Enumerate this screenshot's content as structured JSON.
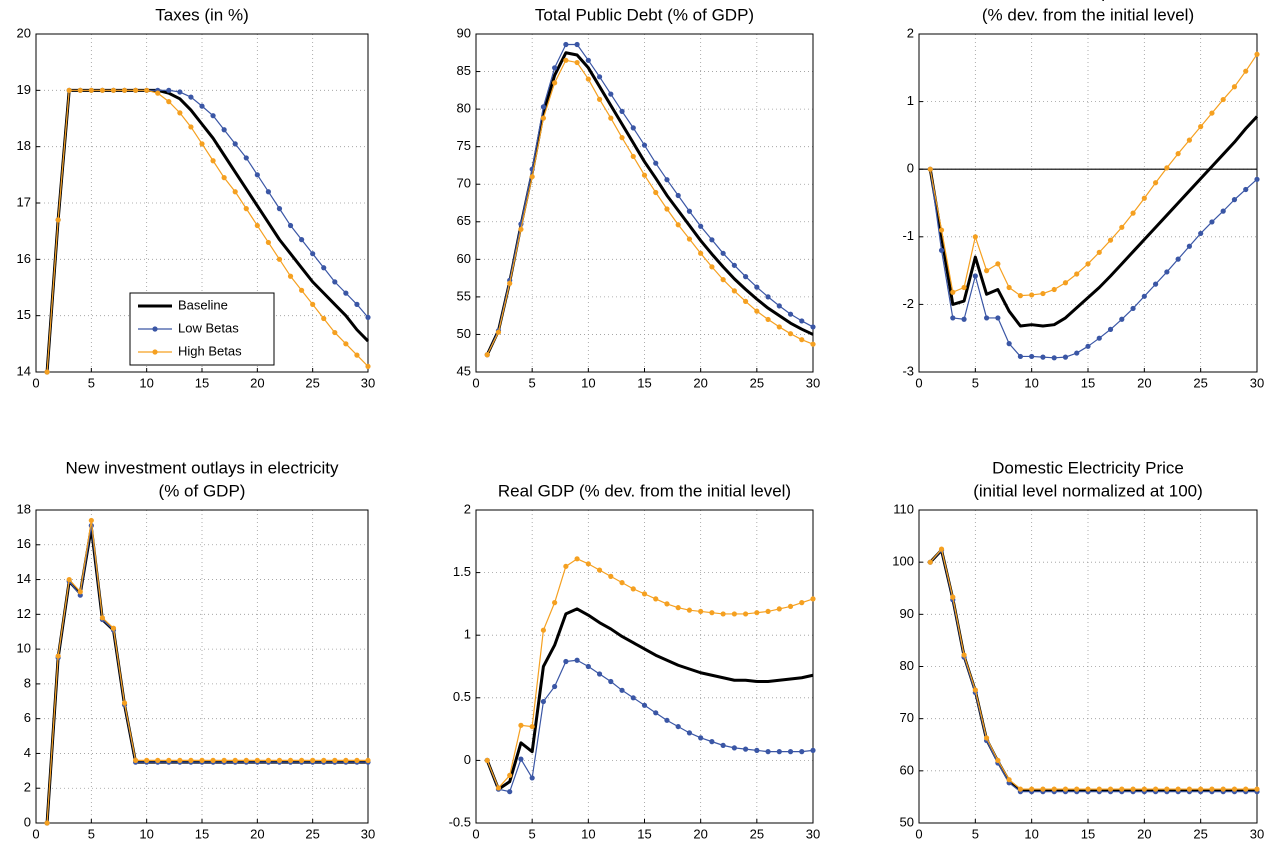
{
  "chart_data": [
    {
      "type": "line",
      "title": [
        "Taxes (in %)"
      ],
      "x": [
        1,
        2,
        3,
        4,
        5,
        6,
        7,
        8,
        9,
        10,
        11,
        12,
        13,
        14,
        15,
        16,
        17,
        18,
        19,
        20,
        21,
        22,
        23,
        24,
        25,
        26,
        27,
        28,
        29,
        30
      ],
      "xlim": [
        0,
        30
      ],
      "xticks": [
        0,
        5,
        10,
        15,
        20,
        25,
        30
      ],
      "ylim": [
        14,
        20
      ],
      "yticks": [
        14,
        15,
        16,
        17,
        18,
        19,
        20
      ],
      "grid": true,
      "legend": "lower center",
      "series": [
        {
          "name": "Baseline",
          "color": "#000000",
          "marker": false,
          "values": [
            14,
            16.7,
            19,
            19,
            19,
            19,
            19,
            19,
            19,
            19,
            19,
            18.95,
            18.85,
            18.65,
            18.4,
            18.15,
            17.85,
            17.55,
            17.25,
            16.95,
            16.65,
            16.35,
            16.1,
            15.85,
            15.6,
            15.4,
            15.2,
            15,
            14.75,
            14.55
          ]
        },
        {
          "name": "Low Betas",
          "color": "#3a56a5",
          "marker": true,
          "values": [
            14,
            16.7,
            19,
            19,
            19,
            19,
            19,
            19,
            19,
            19,
            19,
            19,
            18.97,
            18.88,
            18.72,
            18.55,
            18.3,
            18.05,
            17.8,
            17.5,
            17.2,
            16.9,
            16.6,
            16.35,
            16.1,
            15.85,
            15.6,
            15.4,
            15.2,
            14.97
          ]
        },
        {
          "name": "High Betas",
          "color": "#f5a020",
          "marker": true,
          "values": [
            14,
            16.7,
            19,
            19,
            19,
            19,
            19,
            19,
            19,
            19,
            18.95,
            18.8,
            18.6,
            18.35,
            18.05,
            17.75,
            17.45,
            17.2,
            16.9,
            16.6,
            16.3,
            16,
            15.7,
            15.45,
            15.2,
            14.95,
            14.7,
            14.5,
            14.3,
            14.1
          ]
        }
      ]
    },
    {
      "type": "line",
      "title": [
        "Total Public Debt (% of GDP)"
      ],
      "x": [
        1,
        2,
        3,
        4,
        5,
        6,
        7,
        8,
        9,
        10,
        11,
        12,
        13,
        14,
        15,
        16,
        17,
        18,
        19,
        20,
        21,
        22,
        23,
        24,
        25,
        26,
        27,
        28,
        29,
        30
      ],
      "xlim": [
        0,
        30
      ],
      "xticks": [
        0,
        5,
        10,
        15,
        20,
        25,
        30
      ],
      "ylim": [
        45,
        90
      ],
      "yticks": [
        45,
        50,
        55,
        60,
        65,
        70,
        75,
        80,
        85,
        90
      ],
      "grid": true,
      "series": [
        {
          "name": "Baseline",
          "color": "#000000",
          "marker": false,
          "values": [
            47.3,
            50.5,
            57,
            64.5,
            71.5,
            79.5,
            84.5,
            87.5,
            87.2,
            85.5,
            83,
            80.5,
            78,
            75.5,
            73,
            70.8,
            68.5,
            66.5,
            64.5,
            62.5,
            60.7,
            59,
            57.4,
            56,
            54.7,
            53.5,
            52.5,
            51.5,
            50.7,
            50
          ]
        },
        {
          "name": "Low Betas",
          "color": "#3a56a5",
          "marker": true,
          "values": [
            47.3,
            50.5,
            57.2,
            64.7,
            72,
            80.3,
            85.5,
            88.6,
            88.6,
            86.5,
            84.3,
            82,
            79.7,
            77.5,
            75.2,
            72.8,
            70.6,
            68.5,
            66.4,
            64.4,
            62.6,
            60.8,
            59.2,
            57.7,
            56.3,
            55,
            53.8,
            52.7,
            51.8,
            51
          ]
        },
        {
          "name": "High Betas",
          "color": "#f5a020",
          "marker": true,
          "values": [
            47.3,
            50.3,
            56.8,
            64,
            71,
            78.8,
            83.5,
            86.5,
            86.2,
            84,
            81.3,
            78.8,
            76.2,
            73.7,
            71.2,
            68.9,
            66.7,
            64.6,
            62.7,
            60.8,
            59,
            57.3,
            55.8,
            54.4,
            53.1,
            52,
            51,
            50.1,
            49.3,
            48.7
          ]
        }
      ]
    },
    {
      "type": "line",
      "title": [
        "Consumption",
        "(% dev. from the initial level)"
      ],
      "x": [
        1,
        2,
        3,
        4,
        5,
        6,
        7,
        8,
        9,
        10,
        11,
        12,
        13,
        14,
        15,
        16,
        17,
        18,
        19,
        20,
        21,
        22,
        23,
        24,
        25,
        26,
        27,
        28,
        29,
        30
      ],
      "xlim": [
        0,
        30
      ],
      "xticks": [
        0,
        5,
        10,
        15,
        20,
        25,
        30
      ],
      "ylim": [
        -3,
        2
      ],
      "yticks": [
        -3,
        -2,
        -1,
        0,
        1,
        2
      ],
      "grid": true,
      "hline": 0,
      "series": [
        {
          "name": "Baseline",
          "color": "#000000",
          "marker": false,
          "values": [
            0,
            -1,
            -2,
            -1.95,
            -1.3,
            -1.85,
            -1.78,
            -2.1,
            -2.32,
            -2.3,
            -2.32,
            -2.3,
            -2.2,
            -2.05,
            -1.9,
            -1.75,
            -1.58,
            -1.4,
            -1.22,
            -1.04,
            -0.86,
            -0.68,
            -0.5,
            -0.32,
            -0.14,
            0.04,
            0.22,
            0.4,
            0.6,
            0.78
          ]
        },
        {
          "name": "Low Betas",
          "color": "#3a56a5",
          "marker": true,
          "values": [
            0,
            -1.2,
            -2.2,
            -2.22,
            -1.58,
            -2.2,
            -2.2,
            -2.58,
            -2.77,
            -2.77,
            -2.78,
            -2.79,
            -2.78,
            -2.72,
            -2.62,
            -2.5,
            -2.37,
            -2.22,
            -2.06,
            -1.88,
            -1.7,
            -1.52,
            -1.33,
            -1.14,
            -0.95,
            -0.78,
            -0.62,
            -0.45,
            -0.3,
            -0.15
          ]
        },
        {
          "name": "High Betas",
          "color": "#f5a020",
          "marker": true,
          "values": [
            0,
            -0.9,
            -1.82,
            -1.75,
            -1,
            -1.5,
            -1.4,
            -1.75,
            -1.87,
            -1.86,
            -1.84,
            -1.78,
            -1.68,
            -1.55,
            -1.4,
            -1.23,
            -1.05,
            -0.86,
            -0.65,
            -0.43,
            -0.2,
            0.02,
            0.23,
            0.43,
            0.63,
            0.83,
            1.03,
            1.22,
            1.45,
            1.7
          ]
        }
      ]
    },
    {
      "type": "line",
      "title": [
        "New investment outlays in electricity",
        "(% of GDP)"
      ],
      "x": [
        1,
        2,
        3,
        4,
        5,
        6,
        7,
        8,
        9,
        10,
        11,
        12,
        13,
        14,
        15,
        16,
        17,
        18,
        19,
        20,
        21,
        22,
        23,
        24,
        25,
        26,
        27,
        28,
        29,
        30
      ],
      "xlim": [
        0,
        30
      ],
      "xticks": [
        0,
        5,
        10,
        15,
        20,
        25,
        30
      ],
      "ylim": [
        0,
        18
      ],
      "yticks": [
        0,
        2,
        4,
        6,
        8,
        10,
        12,
        14,
        16,
        18
      ],
      "grid": true,
      "series": [
        {
          "name": "Baseline",
          "color": "#000000",
          "marker": false,
          "values": [
            0,
            9.5,
            13.9,
            13.2,
            17,
            11.7,
            11.1,
            6.8,
            3.5,
            3.5,
            3.5,
            3.5,
            3.5,
            3.5,
            3.5,
            3.5,
            3.5,
            3.5,
            3.5,
            3.5,
            3.5,
            3.5,
            3.5,
            3.5,
            3.5,
            3.5,
            3.5,
            3.5,
            3.5,
            3.5
          ]
        },
        {
          "name": "Low Betas",
          "color": "#3a56a5",
          "marker": true,
          "values": [
            0,
            9.5,
            13.9,
            13.1,
            17.1,
            11.7,
            11.1,
            6.8,
            3.5,
            3.5,
            3.5,
            3.5,
            3.5,
            3.5,
            3.5,
            3.5,
            3.5,
            3.5,
            3.5,
            3.5,
            3.5,
            3.5,
            3.5,
            3.5,
            3.5,
            3.5,
            3.5,
            3.5,
            3.5,
            3.5
          ]
        },
        {
          "name": "High Betas",
          "color": "#f5a020",
          "marker": true,
          "values": [
            0,
            9.6,
            14,
            13.3,
            17.4,
            11.8,
            11.2,
            6.9,
            3.6,
            3.6,
            3.6,
            3.6,
            3.6,
            3.6,
            3.6,
            3.6,
            3.6,
            3.6,
            3.6,
            3.6,
            3.6,
            3.6,
            3.6,
            3.6,
            3.6,
            3.6,
            3.6,
            3.6,
            3.6,
            3.6
          ]
        }
      ]
    },
    {
      "type": "line",
      "title": [
        "Real GDP (% dev. from the initial level)"
      ],
      "x": [
        1,
        2,
        3,
        4,
        5,
        6,
        7,
        8,
        9,
        10,
        11,
        12,
        13,
        14,
        15,
        16,
        17,
        18,
        19,
        20,
        21,
        22,
        23,
        24,
        25,
        26,
        27,
        28,
        29,
        30
      ],
      "xlim": [
        0,
        30
      ],
      "xticks": [
        0,
        5,
        10,
        15,
        20,
        25,
        30
      ],
      "ylim": [
        -0.5,
        2
      ],
      "yticks": [
        -0.5,
        0,
        0.5,
        1,
        1.5,
        2
      ],
      "grid": true,
      "series": [
        {
          "name": "Baseline",
          "color": "#000000",
          "marker": false,
          "values": [
            0,
            -0.23,
            -0.17,
            0.14,
            0.07,
            0.75,
            0.92,
            1.17,
            1.21,
            1.16,
            1.1,
            1.05,
            0.99,
            0.94,
            0.89,
            0.84,
            0.8,
            0.76,
            0.73,
            0.7,
            0.68,
            0.66,
            0.64,
            0.64,
            0.63,
            0.63,
            0.64,
            0.65,
            0.66,
            0.68
          ]
        },
        {
          "name": "Low Betas",
          "color": "#3a56a5",
          "marker": true,
          "values": [
            0,
            -0.23,
            -0.25,
            0.01,
            -0.14,
            0.47,
            0.59,
            0.79,
            0.8,
            0.75,
            0.69,
            0.63,
            0.56,
            0.5,
            0.44,
            0.38,
            0.32,
            0.27,
            0.22,
            0.18,
            0.15,
            0.12,
            0.1,
            0.09,
            0.08,
            0.07,
            0.07,
            0.07,
            0.07,
            0.08
          ]
        },
        {
          "name": "High Betas",
          "color": "#f5a020",
          "marker": true,
          "values": [
            0,
            -0.22,
            -0.12,
            0.28,
            0.27,
            1.04,
            1.26,
            1.55,
            1.61,
            1.57,
            1.52,
            1.47,
            1.42,
            1.37,
            1.33,
            1.29,
            1.25,
            1.22,
            1.2,
            1.19,
            1.18,
            1.17,
            1.17,
            1.17,
            1.18,
            1.19,
            1.21,
            1.23,
            1.26,
            1.29
          ]
        }
      ]
    },
    {
      "type": "line",
      "title": [
        "Domestic Electricity Price",
        "(initial level normalized at 100)"
      ],
      "x": [
        1,
        2,
        3,
        4,
        5,
        6,
        7,
        8,
        9,
        10,
        11,
        12,
        13,
        14,
        15,
        16,
        17,
        18,
        19,
        20,
        21,
        22,
        23,
        24,
        25,
        26,
        27,
        28,
        29,
        30
      ],
      "xlim": [
        0,
        30
      ],
      "xticks": [
        0,
        5,
        10,
        15,
        20,
        25,
        30
      ],
      "ylim": [
        50,
        110
      ],
      "yticks": [
        50,
        60,
        70,
        80,
        90,
        100,
        110
      ],
      "grid": true,
      "series": [
        {
          "name": "Baseline",
          "color": "#000000",
          "marker": false,
          "values": [
            100,
            102.3,
            93,
            82,
            75.3,
            66,
            61.8,
            58,
            56.3,
            56.3,
            56.3,
            56.3,
            56.3,
            56.3,
            56.3,
            56.3,
            56.3,
            56.3,
            56.3,
            56.3,
            56.3,
            56.3,
            56.3,
            56.3,
            56.3,
            56.3,
            56.3,
            56.3,
            56.3,
            56.3
          ]
        },
        {
          "name": "Low Betas",
          "color": "#3a56a5",
          "marker": true,
          "values": [
            100,
            102.3,
            92.8,
            81.8,
            75,
            65.8,
            61.5,
            57.7,
            56,
            56,
            56,
            56,
            56,
            56,
            56,
            56,
            56,
            56,
            56,
            56,
            56,
            56,
            56,
            56,
            56,
            56,
            56,
            56,
            56,
            56
          ]
        },
        {
          "name": "High Betas",
          "color": "#f5a020",
          "marker": true,
          "values": [
            100,
            102.5,
            93.3,
            82.2,
            75.5,
            66.3,
            62,
            58.3,
            56.5,
            56.5,
            56.5,
            56.5,
            56.5,
            56.5,
            56.5,
            56.5,
            56.5,
            56.5,
            56.5,
            56.5,
            56.5,
            56.5,
            56.5,
            56.5,
            56.5,
            56.5,
            56.5,
            56.5,
            56.5,
            56.5
          ]
        }
      ]
    }
  ]
}
